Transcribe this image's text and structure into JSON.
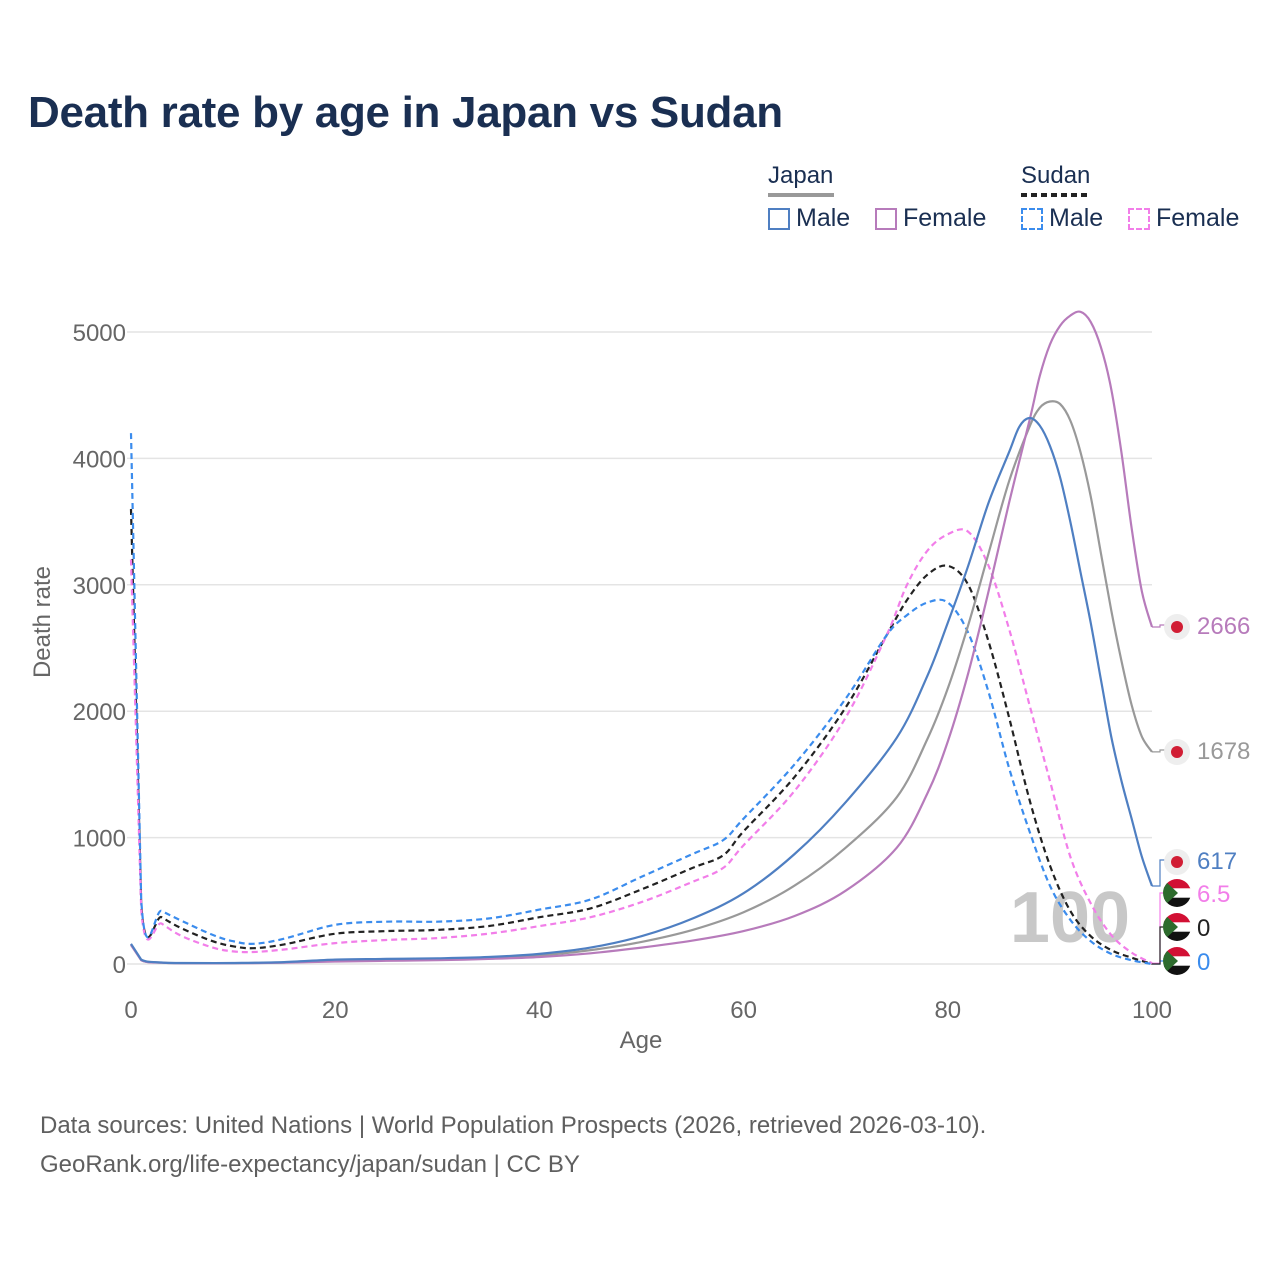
{
  "title": "Death rate by age in Japan vs Sudan",
  "legend": {
    "groups": [
      {
        "name": "Japan",
        "line_style": "solid",
        "line_color": "#999999",
        "items": [
          {
            "label": "Male",
            "color": "#4f7fc2"
          },
          {
            "label": "Female",
            "color": "#b77bbb"
          }
        ]
      },
      {
        "name": "Sudan",
        "line_style": "dashed",
        "line_color": "#222222",
        "items": [
          {
            "label": "Male",
            "color": "#3b8ced"
          },
          {
            "label": "Female",
            "color": "#f27ee9"
          }
        ]
      }
    ]
  },
  "source": {
    "line1": "Data sources: United Nations | World Population Prospects (2026, retrieved 2026-03-10).",
    "line2": "GeoRank.org/life-expectancy/japan/sudan | CC BY"
  },
  "chart_data": {
    "type": "line",
    "xlabel": "Age",
    "ylabel": "Death rate",
    "xlim": [
      0,
      100
    ],
    "ylim": [
      0,
      5000
    ],
    "xticks": [
      0,
      20,
      40,
      60,
      80,
      100
    ],
    "yticks": [
      0,
      1000,
      2000,
      3000,
      4000,
      5000
    ],
    "grid": true,
    "watermark": "100",
    "series": [
      {
        "name": "Japan Male",
        "country": "Japan",
        "sex": "Male",
        "color": "#4f7fc2",
        "dash": false,
        "end_label": "617",
        "flag": "japan",
        "points": [
          [
            0,
            160
          ],
          [
            1,
            35
          ],
          [
            3,
            12
          ],
          [
            5,
            8
          ],
          [
            10,
            8
          ],
          [
            15,
            15
          ],
          [
            20,
            35
          ],
          [
            25,
            40
          ],
          [
            30,
            45
          ],
          [
            35,
            55
          ],
          [
            40,
            80
          ],
          [
            45,
            130
          ],
          [
            50,
            220
          ],
          [
            55,
            360
          ],
          [
            60,
            560
          ],
          [
            65,
            870
          ],
          [
            70,
            1280
          ],
          [
            75,
            1790
          ],
          [
            78,
            2280
          ],
          [
            80,
            2700
          ],
          [
            82,
            3150
          ],
          [
            84,
            3650
          ],
          [
            86,
            4050
          ],
          [
            87,
            4250
          ],
          [
            88,
            4320
          ],
          [
            89,
            4260
          ],
          [
            90,
            4100
          ],
          [
            91,
            3850
          ],
          [
            92,
            3500
          ],
          [
            93,
            3100
          ],
          [
            94,
            2700
          ],
          [
            95,
            2250
          ],
          [
            96,
            1800
          ],
          [
            97,
            1450
          ],
          [
            98,
            1150
          ],
          [
            99,
            850
          ],
          [
            100,
            617
          ]
        ]
      },
      {
        "name": "Japan Female",
        "country": "Japan",
        "sex": "Female",
        "color": "#b77bbb",
        "dash": false,
        "end_label": "2666",
        "flag": "japan",
        "points": [
          [
            0,
            150
          ],
          [
            1,
            30
          ],
          [
            3,
            10
          ],
          [
            5,
            6
          ],
          [
            10,
            6
          ],
          [
            15,
            10
          ],
          [
            20,
            20
          ],
          [
            25,
            25
          ],
          [
            30,
            30
          ],
          [
            35,
            40
          ],
          [
            40,
            55
          ],
          [
            45,
            85
          ],
          [
            50,
            130
          ],
          [
            55,
            185
          ],
          [
            60,
            260
          ],
          [
            65,
            380
          ],
          [
            70,
            580
          ],
          [
            75,
            920
          ],
          [
            78,
            1350
          ],
          [
            80,
            1760
          ],
          [
            82,
            2300
          ],
          [
            84,
            2950
          ],
          [
            86,
            3650
          ],
          [
            88,
            4300
          ],
          [
            89,
            4650
          ],
          [
            90,
            4900
          ],
          [
            91,
            5050
          ],
          [
            92,
            5130
          ],
          [
            93,
            5160
          ],
          [
            94,
            5080
          ],
          [
            95,
            4880
          ],
          [
            96,
            4550
          ],
          [
            97,
            4050
          ],
          [
            98,
            3450
          ],
          [
            99,
            2950
          ],
          [
            100,
            2666
          ]
        ]
      },
      {
        "name": "Japan Total",
        "country": "Japan",
        "sex": "Total",
        "color": "#999999",
        "dash": false,
        "end_label": "1678",
        "flag": "japan",
        "points": [
          [
            0,
            155
          ],
          [
            1,
            32
          ],
          [
            3,
            11
          ],
          [
            5,
            7
          ],
          [
            10,
            7
          ],
          [
            15,
            12
          ],
          [
            20,
            28
          ],
          [
            25,
            32
          ],
          [
            30,
            38
          ],
          [
            35,
            48
          ],
          [
            40,
            68
          ],
          [
            45,
            110
          ],
          [
            50,
            175
          ],
          [
            55,
            270
          ],
          [
            60,
            410
          ],
          [
            65,
            620
          ],
          [
            70,
            920
          ],
          [
            75,
            1320
          ],
          [
            78,
            1780
          ],
          [
            80,
            2180
          ],
          [
            82,
            2680
          ],
          [
            84,
            3250
          ],
          [
            86,
            3820
          ],
          [
            88,
            4250
          ],
          [
            89,
            4400
          ],
          [
            90,
            4450
          ],
          [
            91,
            4430
          ],
          [
            92,
            4300
          ],
          [
            93,
            4050
          ],
          [
            94,
            3700
          ],
          [
            95,
            3250
          ],
          [
            96,
            2800
          ],
          [
            97,
            2400
          ],
          [
            98,
            2050
          ],
          [
            99,
            1800
          ],
          [
            100,
            1678
          ]
        ]
      },
      {
        "name": "Sudan Male",
        "country": "Sudan",
        "sex": "Male",
        "color": "#3b8ced",
        "dash": true,
        "end_label": "0",
        "flag": "sudan",
        "points": [
          [
            0,
            4200
          ],
          [
            1,
            510
          ],
          [
            3,
            420
          ],
          [
            5,
            340
          ],
          [
            8,
            230
          ],
          [
            10,
            180
          ],
          [
            12,
            160
          ],
          [
            15,
            200
          ],
          [
            20,
            310
          ],
          [
            25,
            335
          ],
          [
            30,
            335
          ],
          [
            35,
            360
          ],
          [
            40,
            430
          ],
          [
            45,
            510
          ],
          [
            50,
            690
          ],
          [
            55,
            870
          ],
          [
            58,
            980
          ],
          [
            60,
            1150
          ],
          [
            65,
            1580
          ],
          [
            70,
            2100
          ],
          [
            74,
            2600
          ],
          [
            76,
            2760
          ],
          [
            78,
            2860
          ],
          [
            80,
            2860
          ],
          [
            82,
            2620
          ],
          [
            84,
            2150
          ],
          [
            86,
            1550
          ],
          [
            88,
            1050
          ],
          [
            90,
            620
          ],
          [
            92,
            350
          ],
          [
            94,
            180
          ],
          [
            96,
            80
          ],
          [
            98,
            30
          ],
          [
            100,
            0
          ]
        ]
      },
      {
        "name": "Sudan Female",
        "country": "Sudan",
        "sex": "Female",
        "color": "#f27ee9",
        "dash": true,
        "end_label": "6.5",
        "flag": "sudan",
        "points": [
          [
            0,
            3200
          ],
          [
            1,
            430
          ],
          [
            3,
            320
          ],
          [
            5,
            220
          ],
          [
            8,
            130
          ],
          [
            10,
            100
          ],
          [
            12,
            95
          ],
          [
            15,
            115
          ],
          [
            20,
            165
          ],
          [
            25,
            190
          ],
          [
            30,
            205
          ],
          [
            35,
            240
          ],
          [
            40,
            300
          ],
          [
            45,
            370
          ],
          [
            50,
            490
          ],
          [
            55,
            650
          ],
          [
            58,
            760
          ],
          [
            60,
            940
          ],
          [
            65,
            1370
          ],
          [
            70,
            1950
          ],
          [
            74,
            2600
          ],
          [
            76,
            3000
          ],
          [
            78,
            3270
          ],
          [
            80,
            3400
          ],
          [
            82,
            3420
          ],
          [
            84,
            3150
          ],
          [
            86,
            2650
          ],
          [
            88,
            2050
          ],
          [
            90,
            1450
          ],
          [
            92,
            850
          ],
          [
            94,
            480
          ],
          [
            96,
            230
          ],
          [
            98,
            90
          ],
          [
            100,
            6.5
          ]
        ]
      },
      {
        "name": "Sudan Total",
        "country": "Sudan",
        "sex": "Total",
        "color": "#222222",
        "dash": true,
        "end_label": "0",
        "flag": "sudan",
        "points": [
          [
            0,
            3600
          ],
          [
            1,
            470
          ],
          [
            3,
            370
          ],
          [
            5,
            280
          ],
          [
            8,
            180
          ],
          [
            10,
            140
          ],
          [
            12,
            125
          ],
          [
            15,
            155
          ],
          [
            20,
            240
          ],
          [
            25,
            260
          ],
          [
            30,
            270
          ],
          [
            35,
            300
          ],
          [
            40,
            370
          ],
          [
            45,
            440
          ],
          [
            50,
            590
          ],
          [
            55,
            760
          ],
          [
            58,
            860
          ],
          [
            60,
            1050
          ],
          [
            65,
            1480
          ],
          [
            70,
            2030
          ],
          [
            74,
            2600
          ],
          [
            76,
            2880
          ],
          [
            78,
            3080
          ],
          [
            80,
            3150
          ],
          [
            82,
            3000
          ],
          [
            84,
            2550
          ],
          [
            86,
            1950
          ],
          [
            88,
            1300
          ],
          [
            90,
            780
          ],
          [
            92,
            420
          ],
          [
            94,
            220
          ],
          [
            96,
            110
          ],
          [
            98,
            50
          ],
          [
            100,
            0
          ]
        ]
      }
    ]
  }
}
